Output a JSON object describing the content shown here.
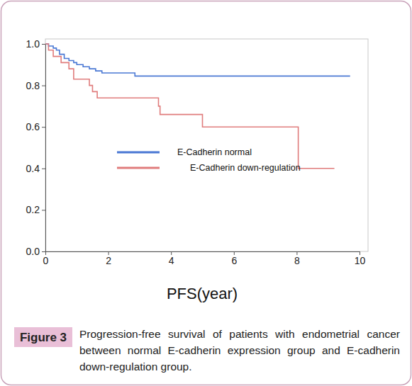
{
  "chart_data": {
    "type": "line",
    "figure_label": "Figure 3",
    "caption": "Progression-free survival of patients with endometrial cancer between normal E-cadherin expression group and E-cadherin down-regulation group.",
    "x_label": "PFS(year)",
    "xlim": [
      0,
      10
    ],
    "xticks": [
      0,
      2,
      4,
      6,
      8,
      10
    ],
    "ylim": [
      0,
      1
    ],
    "yticks": [
      {
        "value": 0,
        "label": "0.0"
      },
      0.2,
      0.4,
      0.6,
      0.8,
      {
        "value": 1,
        "label": "1.0"
      }
    ],
    "legend": "center",
    "series": [
      {
        "name": "E-Cadherin normal",
        "color": "#4a78d4",
        "line_style": "step",
        "x": [
          0,
          0.1,
          0.25,
          0.35,
          0.45,
          0.6,
          0.75,
          0.9,
          1.0,
          1.2,
          1.4,
          1.6,
          1.8,
          2.85,
          9.7
        ],
        "values": [
          1.0,
          0.99,
          0.98,
          0.97,
          0.95,
          0.93,
          0.92,
          0.91,
          0.9,
          0.89,
          0.88,
          0.87,
          0.86,
          0.845,
          0.845
        ]
      },
      {
        "name": "E-Cadherin down-regulation",
        "color": "#e07c7c",
        "line_style": "step",
        "x": [
          0,
          0.1,
          0.25,
          0.5,
          0.75,
          0.9,
          1.4,
          1.5,
          1.65,
          3.6,
          3.65,
          5.0,
          8.05,
          9.2
        ],
        "values": [
          1.0,
          0.97,
          0.94,
          0.91,
          0.88,
          0.83,
          0.8,
          0.77,
          0.74,
          0.7,
          0.66,
          0.6,
          0.4,
          0.4
        ]
      }
    ]
  }
}
